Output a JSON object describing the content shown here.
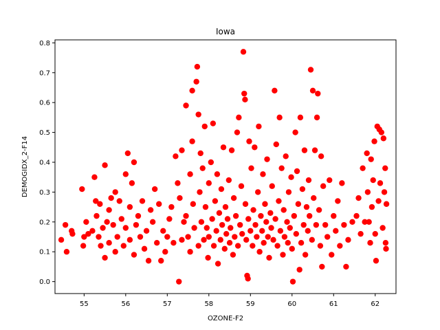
{
  "chart_data": {
    "type": "scatter",
    "title": "Iowa",
    "xlabel": "OZONE-F2",
    "ylabel": "DEMOGIDX_2-F14",
    "xlim": [
      54.3,
      62.5
    ],
    "ylim": [
      -0.04,
      0.81
    ],
    "x_ticks": [
      55,
      56,
      57,
      58,
      59,
      60,
      61,
      62
    ],
    "y_ticks": [
      0.0,
      0.1,
      0.2,
      0.3,
      0.4,
      0.5,
      0.6,
      0.7,
      0.8
    ],
    "grid": false,
    "legend": "none",
    "marker_color": "#ff0000",
    "series": [
      {
        "points": [
          [
            54.45,
            0.14
          ],
          [
            54.55,
            0.19
          ],
          [
            54.58,
            0.1
          ],
          [
            54.7,
            0.17
          ],
          [
            54.72,
            0.16
          ],
          [
            54.95,
            0.31
          ],
          [
            54.98,
            0.12
          ],
          [
            55.0,
            0.15
          ],
          [
            55.05,
            0.2
          ],
          [
            55.1,
            0.16
          ],
          [
            55.2,
            0.17
          ],
          [
            55.25,
            0.35
          ],
          [
            55.28,
            0.27
          ],
          [
            55.3,
            0.22
          ],
          [
            55.35,
            0.15
          ],
          [
            55.38,
            0.26
          ],
          [
            55.4,
            0.12
          ],
          [
            55.45,
            0.18
          ],
          [
            55.5,
            0.39
          ],
          [
            55.5,
            0.08
          ],
          [
            55.55,
            0.2
          ],
          [
            55.6,
            0.24
          ],
          [
            55.6,
            0.13
          ],
          [
            55.65,
            0.28
          ],
          [
            55.7,
            0.19
          ],
          [
            55.75,
            0.1
          ],
          [
            55.75,
            0.3
          ],
          [
            55.8,
            0.15
          ],
          [
            55.85,
            0.27
          ],
          [
            55.9,
            0.21
          ],
          [
            55.95,
            0.12
          ],
          [
            56.0,
            0.18
          ],
          [
            56.0,
            0.36
          ],
          [
            56.05,
            0.43
          ],
          [
            56.1,
            0.25
          ],
          [
            56.1,
            0.14
          ],
          [
            56.15,
            0.33
          ],
          [
            56.2,
            0.4
          ],
          [
            56.2,
            0.09
          ],
          [
            56.25,
            0.19
          ],
          [
            56.3,
            0.22
          ],
          [
            56.35,
            0.15
          ],
          [
            56.4,
            0.27
          ],
          [
            56.45,
            0.11
          ],
          [
            56.5,
            0.17
          ],
          [
            56.55,
            0.07
          ],
          [
            56.6,
            0.24
          ],
          [
            56.65,
            0.2
          ],
          [
            56.7,
            0.31
          ],
          [
            56.75,
            0.13
          ],
          [
            56.8,
            0.26
          ],
          [
            56.85,
            0.07
          ],
          [
            56.9,
            0.17
          ],
          [
            56.95,
            0.1
          ],
          [
            57.0,
            0.15
          ],
          [
            57.05,
            0.21
          ],
          [
            57.1,
            0.25
          ],
          [
            57.15,
            0.13
          ],
          [
            57.2,
            0.42
          ],
          [
            57.25,
            0.33
          ],
          [
            57.28,
            0.0
          ],
          [
            57.3,
            0.28
          ],
          [
            57.35,
            0.44
          ],
          [
            57.35,
            0.14
          ],
          [
            57.4,
            0.2
          ],
          [
            57.45,
            0.22
          ],
          [
            57.45,
            0.59
          ],
          [
            57.5,
            0.15
          ],
          [
            57.55,
            0.36
          ],
          [
            57.55,
            0.1
          ],
          [
            57.6,
            0.64
          ],
          [
            57.6,
            0.47
          ],
          [
            57.62,
            0.26
          ],
          [
            57.65,
            0.18
          ],
          [
            57.7,
            0.67
          ],
          [
            57.72,
            0.72
          ],
          [
            57.75,
            0.56
          ],
          [
            57.75,
            0.12
          ],
          [
            57.78,
            0.3
          ],
          [
            57.8,
            0.43
          ],
          [
            57.82,
            0.2
          ],
          [
            57.85,
            0.38
          ],
          [
            57.88,
            0.14
          ],
          [
            57.9,
            0.52
          ],
          [
            57.92,
            0.25
          ],
          [
            57.95,
            0.18
          ],
          [
            57.98,
            0.08
          ],
          [
            58.0,
            0.33
          ],
          [
            58.0,
            0.15
          ],
          [
            58.05,
            0.4
          ],
          [
            58.08,
            0.21
          ],
          [
            58.1,
            0.53
          ],
          [
            58.12,
            0.12
          ],
          [
            58.15,
            0.27
          ],
          [
            58.18,
            0.17
          ],
          [
            58.2,
            0.36
          ],
          [
            58.22,
            0.06
          ],
          [
            58.25,
            0.23
          ],
          [
            58.28,
            0.14
          ],
          [
            58.3,
            0.31
          ],
          [
            58.32,
            0.19
          ],
          [
            58.35,
            0.45
          ],
          [
            58.38,
            0.11
          ],
          [
            58.4,
            0.25
          ],
          [
            58.42,
            0.16
          ],
          [
            58.45,
            0.21
          ],
          [
            58.48,
            0.34
          ],
          [
            58.5,
            0.13
          ],
          [
            58.52,
            0.18
          ],
          [
            58.55,
            0.44
          ],
          [
            58.58,
            0.09
          ],
          [
            58.6,
            0.28
          ],
          [
            58.62,
            0.15
          ],
          [
            58.65,
            0.22
          ],
          [
            58.68,
            0.5
          ],
          [
            58.7,
            0.12
          ],
          [
            58.72,
            0.55
          ],
          [
            58.75,
            0.19
          ],
          [
            58.78,
            0.32
          ],
          [
            58.8,
            0.16
          ],
          [
            58.83,
            0.77
          ],
          [
            58.85,
            0.63
          ],
          [
            58.87,
            0.61
          ],
          [
            58.88,
            0.26
          ],
          [
            58.9,
            0.14
          ],
          [
            58.92,
            0.02
          ],
          [
            58.94,
            0.01
          ],
          [
            58.95,
            0.21
          ],
          [
            58.97,
            0.47
          ],
          [
            59.0,
            0.17
          ],
          [
            59.02,
            0.38
          ],
          [
            59.05,
            0.12
          ],
          [
            59.07,
            0.24
          ],
          [
            59.1,
            0.45
          ],
          [
            59.12,
            0.19
          ],
          [
            59.15,
            0.15
          ],
          [
            59.18,
            0.3
          ],
          [
            59.2,
            0.52
          ],
          [
            59.22,
            0.1
          ],
          [
            59.25,
            0.22
          ],
          [
            59.28,
            0.17
          ],
          [
            59.3,
            0.36
          ],
          [
            59.32,
            0.13
          ],
          [
            59.35,
            0.26
          ],
          [
            59.38,
            0.2
          ],
          [
            59.4,
            0.41
          ],
          [
            59.42,
            0.15
          ],
          [
            59.45,
            0.08
          ],
          [
            59.48,
            0.23
          ],
          [
            59.5,
            0.18
          ],
          [
            59.52,
            0.32
          ],
          [
            59.55,
            0.14
          ],
          [
            59.58,
            0.64
          ],
          [
            59.6,
            0.21
          ],
          [
            59.62,
            0.46
          ],
          [
            59.65,
            0.12
          ],
          [
            59.68,
            0.27
          ],
          [
            59.7,
            0.55
          ],
          [
            59.72,
            0.17
          ],
          [
            59.75,
            0.38
          ],
          [
            59.78,
            0.09
          ],
          [
            59.8,
            0.24
          ],
          [
            59.82,
            0.15
          ],
          [
            59.85,
            0.42
          ],
          [
            59.88,
            0.2
          ],
          [
            59.9,
            0.13
          ],
          [
            59.92,
            0.3
          ],
          [
            59.95,
            0.18
          ],
          [
            59.98,
            0.35
          ],
          [
            60.0,
            0.11
          ],
          [
            60.02,
            0.0
          ],
          [
            60.05,
            0.22
          ],
          [
            60.08,
            0.5
          ],
          [
            60.1,
            0.16
          ],
          [
            60.12,
            0.37
          ],
          [
            60.15,
            0.26
          ],
          [
            60.18,
            0.04
          ],
          [
            60.2,
            0.55
          ],
          [
            60.22,
            0.13
          ],
          [
            60.25,
            0.31
          ],
          [
            60.28,
            0.19
          ],
          [
            60.3,
            0.44
          ],
          [
            60.32,
            0.09
          ],
          [
            60.35,
            0.25
          ],
          [
            60.38,
            0.17
          ],
          [
            60.4,
            0.34
          ],
          [
            60.42,
            0.22
          ],
          [
            60.45,
            0.71
          ],
          [
            60.48,
            0.14
          ],
          [
            60.5,
            0.64
          ],
          [
            60.52,
            0.28
          ],
          [
            60.55,
            0.44
          ],
          [
            60.58,
            0.19
          ],
          [
            60.6,
            0.55
          ],
          [
            60.62,
            0.63
          ],
          [
            60.65,
            0.24
          ],
          [
            60.68,
            0.12
          ],
          [
            60.7,
            0.42
          ],
          [
            60.72,
            0.05
          ],
          [
            60.75,
            0.32
          ],
          [
            60.8,
            0.19
          ],
          [
            60.85,
            0.15
          ],
          [
            60.9,
            0.34
          ],
          [
            60.95,
            0.09
          ],
          [
            61.0,
            0.22
          ],
          [
            61.05,
            0.17
          ],
          [
            61.1,
            0.27
          ],
          [
            61.15,
            0.12
          ],
          [
            61.2,
            0.33
          ],
          [
            61.25,
            0.19
          ],
          [
            61.3,
            0.05
          ],
          [
            61.35,
            0.14
          ],
          [
            61.45,
            0.2
          ],
          [
            61.55,
            0.22
          ],
          [
            61.6,
            0.28
          ],
          [
            61.65,
            0.16
          ],
          [
            61.7,
            0.38
          ],
          [
            61.75,
            0.2
          ],
          [
            61.8,
            0.43
          ],
          [
            61.82,
            0.3
          ],
          [
            61.85,
            0.2
          ],
          [
            61.88,
            0.13
          ],
          [
            61.9,
            0.41
          ],
          [
            61.92,
            0.25
          ],
          [
            61.95,
            0.34
          ],
          [
            61.98,
            0.47
          ],
          [
            62.0,
            0.16
          ],
          [
            62.02,
            0.07
          ],
          [
            62.05,
            0.52
          ],
          [
            62.08,
            0.27
          ],
          [
            62.1,
            0.51
          ],
          [
            62.12,
            0.33
          ],
          [
            62.15,
            0.5
          ],
          [
            62.18,
            0.18
          ],
          [
            62.2,
            0.48
          ],
          [
            62.22,
            0.3
          ],
          [
            62.24,
            0.38
          ],
          [
            62.25,
            0.13
          ],
          [
            62.26,
            0.11
          ],
          [
            62.27,
            0.26
          ]
        ]
      }
    ]
  }
}
